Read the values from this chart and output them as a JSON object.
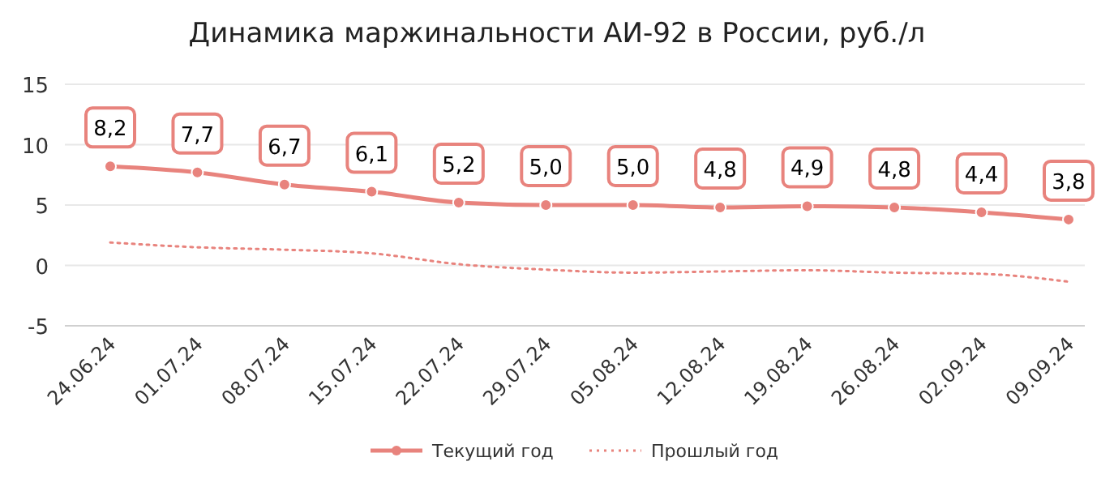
{
  "chart_data": {
    "type": "line",
    "title": "Динамика маржинальности АИ-92 в России, руб./л",
    "categories": [
      "24.06.24",
      "01.07.24",
      "08.07.24",
      "15.07.24",
      "22.07.24",
      "29.07.24",
      "05.08.24",
      "12.08.24",
      "19.08.24",
      "26.08.24",
      "02.09.24",
      "09.09.24"
    ],
    "series": [
      {
        "name": "Текущий год",
        "color": "#e8837d",
        "marker": "circle",
        "line_style": "solid",
        "values": [
          8.2,
          7.7,
          6.7,
          6.1,
          5.2,
          5.0,
          5.0,
          4.8,
          4.9,
          4.8,
          4.4,
          3.8
        ],
        "value_labels": [
          "8,2",
          "7,7",
          "6,7",
          "6,1",
          "5,2",
          "5,0",
          "5,0",
          "4,8",
          "4,9",
          "4,8",
          "4,4",
          "3,8"
        ]
      },
      {
        "name": "Прошлый год",
        "color": "#e8837d",
        "marker": "none",
        "line_style": "dotted",
        "values": [
          1.9,
          1.5,
          1.3,
          1.0,
          0.1,
          -0.35,
          -0.6,
          -0.5,
          -0.4,
          -0.6,
          -0.7,
          -1.35
        ]
      }
    ],
    "ylim": [
      -5,
      15
    ],
    "yticks": [
      -5,
      0,
      5,
      10,
      15
    ],
    "grid": "y",
    "legend": "bottom"
  }
}
